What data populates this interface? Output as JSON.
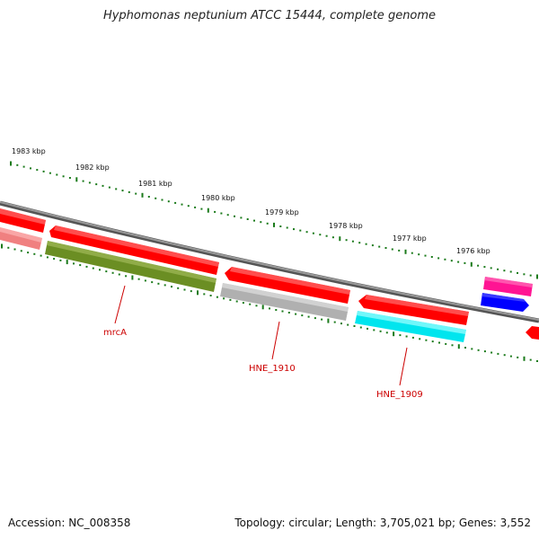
{
  "header": {
    "title": "Hyphomonas neptunium ATCC 15444, complete genome"
  },
  "footer": {
    "accession": "Accession: NC_008358",
    "summary": "Topology: circular; Length: 3,705,021 bp; Genes: 3,552"
  },
  "scale": {
    "labels": [
      "1983 kbp",
      "1982 kbp",
      "1981 kbp",
      "1980 kbp",
      "1979 kbp",
      "1978 kbp",
      "1977 kbp",
      "1976 kbp"
    ]
  },
  "gene_labels": {
    "mrcA": "mrcA",
    "hne1910": "HNE_1910",
    "hne1909": "HNE_1909"
  },
  "colors": {
    "backbone": "#808080",
    "ticks": "#1a7a1a",
    "cds_red": "#ff0000",
    "cds_pink": "#f08080",
    "cds_olive": "#6b8e23",
    "cds_gray": "#b0b0b0",
    "cds_cyan": "#00e5ee",
    "cds_magenta": "#ff1493",
    "cds_blue": "#0000ff",
    "label_line": "#cc0000"
  }
}
